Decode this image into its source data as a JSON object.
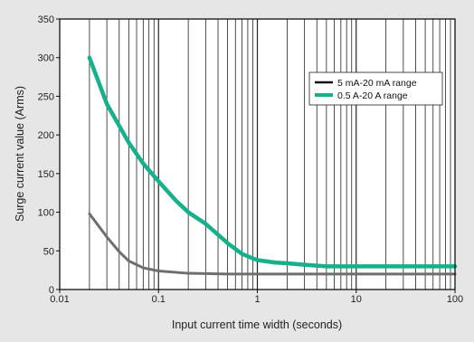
{
  "chart_data": {
    "type": "line",
    "xlabel": "Input current time width (seconds)",
    "ylabel": "Surge current value (Arms)",
    "x_scale": "log",
    "xlim": [
      0.01,
      100
    ],
    "ylim": [
      0,
      350
    ],
    "x_ticks": [
      0.01,
      0.1,
      1,
      10,
      100
    ],
    "x_tick_labels": [
      "0.01",
      "0.1",
      "1",
      "10",
      "100"
    ],
    "y_ticks": [
      0,
      50,
      100,
      150,
      200,
      250,
      300,
      350
    ],
    "y_tick_labels": [
      "0",
      "50",
      "100",
      "150",
      "200",
      "250",
      "300",
      "350"
    ],
    "grid": {
      "x_minor": true,
      "y": false
    },
    "legend": "top-right",
    "series": [
      {
        "name": "5 mA-20 mA range",
        "color": "#6e6e6e",
        "legend_color": "#111111",
        "x": [
          0.02,
          0.03,
          0.04,
          0.05,
          0.07,
          0.1,
          0.2,
          0.5,
          1,
          2,
          5,
          10,
          20,
          50,
          100
        ],
        "y": [
          98,
          68,
          49,
          37,
          28,
          24,
          21,
          20,
          20,
          20,
          20,
          20,
          20,
          20,
          20
        ]
      },
      {
        "name": "0.5 A-20 A range",
        "color": "#16b08a",
        "legend_color": "#16b08a",
        "x": [
          0.02,
          0.03,
          0.05,
          0.07,
          0.1,
          0.15,
          0.2,
          0.3,
          0.5,
          0.7,
          1,
          1.5,
          2,
          3,
          5,
          7,
          10,
          20,
          50,
          100
        ],
        "y": [
          300,
          240,
          190,
          163,
          140,
          115,
          100,
          85,
          60,
          46,
          38,
          35,
          34,
          32,
          30,
          30,
          30,
          30,
          30,
          30
        ]
      }
    ]
  }
}
